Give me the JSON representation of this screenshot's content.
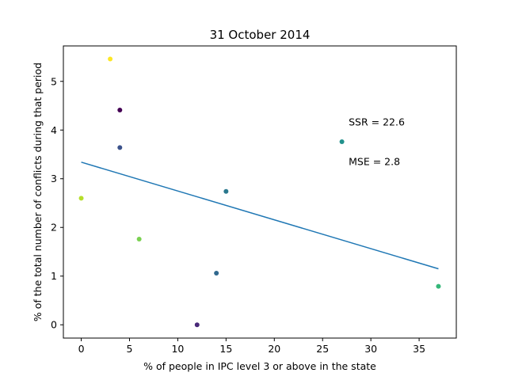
{
  "chart_data": {
    "type": "scatter",
    "title": "31 October 2014",
    "xlabel": "% of people in IPC level 3 or above in the state",
    "ylabel": "% of the total number of conflicts during that period",
    "xlim": [
      -1.85,
      38.85
    ],
    "ylim": [
      -0.273,
      5.728
    ],
    "xticks": [
      0,
      5,
      10,
      15,
      20,
      25,
      30,
      35
    ],
    "yticks": [
      0,
      1,
      2,
      3,
      4,
      5
    ],
    "grid": false,
    "points": [
      {
        "x": 3,
        "y": 5.46,
        "color": "#fde725"
      },
      {
        "x": 4,
        "y": 4.41,
        "color": "#440154"
      },
      {
        "x": 4,
        "y": 3.64,
        "color": "#3b528b"
      },
      {
        "x": 0,
        "y": 2.6,
        "color": "#b5de2b"
      },
      {
        "x": 6,
        "y": 1.76,
        "color": "#7ad151"
      },
      {
        "x": 27,
        "y": 3.76,
        "color": "#21918c"
      },
      {
        "x": 15,
        "y": 2.74,
        "color": "#2a788e"
      },
      {
        "x": 14,
        "y": 1.06,
        "color": "#31688e"
      },
      {
        "x": 12,
        "y": 0.0,
        "color": "#482878"
      },
      {
        "x": 37,
        "y": 0.79,
        "color": "#35b779"
      }
    ],
    "fit_line": {
      "x": [
        0,
        37
      ],
      "y": [
        3.34,
        1.15
      ],
      "color": "#1f77b4"
    },
    "annotations": [
      {
        "text": "SSR = 22.6",
        "x": 27.7,
        "y": 4.09
      },
      {
        "text": "MSE = 2.8",
        "x": 27.7,
        "y": 3.28
      }
    ]
  }
}
